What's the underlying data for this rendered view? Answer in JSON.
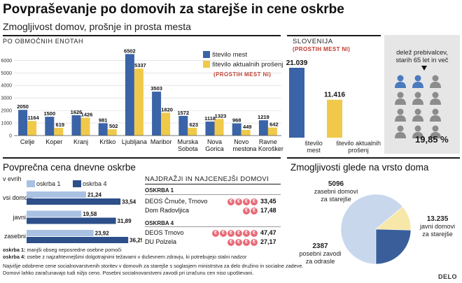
{
  "title": "Povpraševanje po domovih za starejše in cene oskrbe",
  "subtitle": "Zmogljivost domov, prošnje in prosta mesta",
  "regional": {
    "heading": "PO OBMOČNIH ENOTAH",
    "legend_capacity": "število mest",
    "legend_requests": "število aktualnih prošenj",
    "note_red": "(PROSTIH MEST NI)"
  },
  "slovenia": {
    "heading": "SLOVENIJA",
    "note_red": "(PROSTIH MEST NI)",
    "label_capacity_1": "število",
    "label_capacity_2": "mest",
    "label_requests_1": "število aktualnih",
    "label_requests_2": "prošenj"
  },
  "share": {
    "line1": "delež prebivalcev,",
    "line2": "starih 65 let in več",
    "value": "19,85 %"
  },
  "price": {
    "title": "Povprečna cena dnevne oskrbe",
    "unit": "v evrih",
    "legend_1": "oskrba 1",
    "legend_4": "oskrba 4"
  },
  "extremes": {
    "title": "NAJDRAŽJI IN NAJCENEJŠI DOMOVI",
    "group1_label": "OSKRBA 1",
    "group4_label": "OSKRBA 4",
    "euro_symbol": "€",
    "group1": [
      {
        "name": "DEOS Črnuče, Trnovo",
        "value": "33,45",
        "coins": 4
      },
      {
        "name": "Dom Radovljica",
        "value": "17,48",
        "coins": 2
      }
    ],
    "group4": [
      {
        "name": "DEOS Trnovo",
        "value": "47,47",
        "coins": 6
      },
      {
        "name": "DU Polzela",
        "value": "27,17",
        "coins": 4
      }
    ]
  },
  "capacity_type": {
    "title": "Zmogljivosti glede na vrsto doma",
    "label_private_value": "5096",
    "label_private_1": "zasebni domovi",
    "label_private_2": "za starejše",
    "label_public_value": "13.235",
    "label_public_1": "javni domovi",
    "label_public_2": "za starejše",
    "label_special_value": "2387",
    "label_special_1": "posebni zavodi",
    "label_special_2": "za odrasle"
  },
  "footnotes": {
    "f1_bold": "oskrba 1:",
    "f1": " manjši obseg neposredne osebne pomoči",
    "f2_bold": "oskrba 4:",
    "f2": " osebe z najzahtevnejšimi dolgotrajnimi težavami v duševnem zdravju, ki potrebujejo stalni nadzor",
    "f3": "Najvišje odobrene cene socialnovarstvenih storitev v domovih za starejše s soglasjem ministrstva za delo družino in socialne zadeve.",
    "f4": "Domovi lahko zaračunavajo tudi nižjo ceno. Posebni socialnovarstveni zavodi pri izračunu cen niso upoštevani."
  },
  "source": "DELO",
  "colors": {
    "blue": "#3a63a8",
    "yellow": "#f0c94a",
    "light_yellow": "#f7e7a8",
    "dark_blue": "#2d4f8a",
    "panel": "#e6e6e6",
    "red": "#c0392b",
    "coin": "#e86b77",
    "person_blue": "#4a7abf",
    "person_grey": "#8c8c8c"
  },
  "chart_data": [
    {
      "type": "bar",
      "title": "PO OBMOČNIH ENOTAH",
      "categories": [
        "Celje",
        "Koper",
        "Kranj",
        "Krško",
        "Ljubljana",
        "Maribor",
        "Murska Sobota",
        "Nova Gorica",
        "Novo mesto",
        "Ravne na Koroškem"
      ],
      "series": [
        {
          "name": "število mest",
          "values": [
            2050,
            1500,
            1626,
            981,
            6502,
            3503,
            1572,
            1118,
            968,
            1219
          ]
        },
        {
          "name": "število aktualnih prošenj",
          "values": [
            1164,
            619,
            1426,
            502,
            5337,
            1820,
            623,
            1323,
            449,
            642
          ]
        }
      ],
      "yticks": [
        0,
        1000,
        2000,
        3000,
        4000,
        5000,
        6000
      ],
      "ylim": [
        0,
        6800
      ]
    },
    {
      "type": "bar",
      "title": "SLOVENIJA",
      "categories": [
        "število mest",
        "število aktualnih prošenj"
      ],
      "values": [
        21039,
        11416
      ],
      "value_labels": [
        "21.039",
        "11.416"
      ]
    },
    {
      "type": "bar",
      "orientation": "horizontal",
      "title": "Povprečna cena dnevne oskrbe",
      "ylabel": "v evrih",
      "categories": [
        "vsi domovi",
        "javni",
        "zasebni"
      ],
      "series": [
        {
          "name": "oskrba 1",
          "values": [
            21.24,
            19.58,
            23.92
          ],
          "value_labels": [
            "21,24",
            "19,58",
            "23,92"
          ]
        },
        {
          "name": "oskrba 4",
          "values": [
            33.54,
            31.89,
            36.29
          ],
          "value_labels": [
            "33,54",
            "31,89",
            "36,29"
          ]
        }
      ]
    },
    {
      "type": "pie",
      "title": "Zmogljivosti glede na vrsto doma",
      "labels": [
        "javni domovi za starejše",
        "posebni zavodi za odrasle",
        "zasebni domovi za starejše"
      ],
      "values": [
        13235,
        2387,
        5096
      ]
    }
  ]
}
